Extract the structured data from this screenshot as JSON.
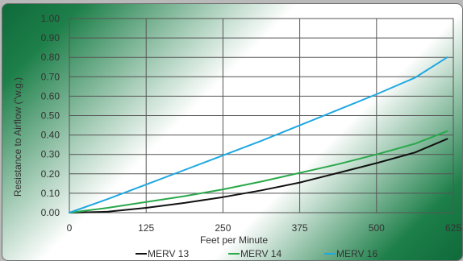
{
  "chart_data": {
    "type": "line",
    "title": "",
    "xlabel": "Feet per Minute",
    "ylabel": "Resistance to Airflow (\"w.g.)",
    "xlim": [
      0,
      625
    ],
    "ylim": [
      0,
      1.0
    ],
    "x_ticks": [
      "0",
      "125",
      "250",
      "375",
      "500",
      "625"
    ],
    "y_ticks": [
      "0.00",
      "0.10",
      "0.20",
      "0.30",
      "0.40",
      "0.50",
      "0.60",
      "0.70",
      "0.80",
      "0.90",
      "1.00"
    ],
    "grid": true,
    "legend_position": "bottom",
    "x": [
      0,
      62.5,
      125,
      187.5,
      250,
      312.5,
      375,
      437.5,
      500,
      562.5,
      615
    ],
    "series": [
      {
        "name": "MERV 13",
        "color": "#111111",
        "values": [
          0,
          0.005,
          0.025,
          0.05,
          0.08,
          0.115,
          0.155,
          0.205,
          0.255,
          0.31,
          0.38
        ]
      },
      {
        "name": "MERV 14",
        "color": "#2aa84a",
        "values": [
          0,
          0.025,
          0.055,
          0.085,
          0.12,
          0.16,
          0.205,
          0.25,
          0.3,
          0.355,
          0.42
        ]
      },
      {
        "name": "MERV 16",
        "color": "#1fa8e0",
        "values": [
          0,
          0.07,
          0.145,
          0.22,
          0.295,
          0.37,
          0.45,
          0.53,
          0.61,
          0.695,
          0.8
        ]
      }
    ]
  }
}
